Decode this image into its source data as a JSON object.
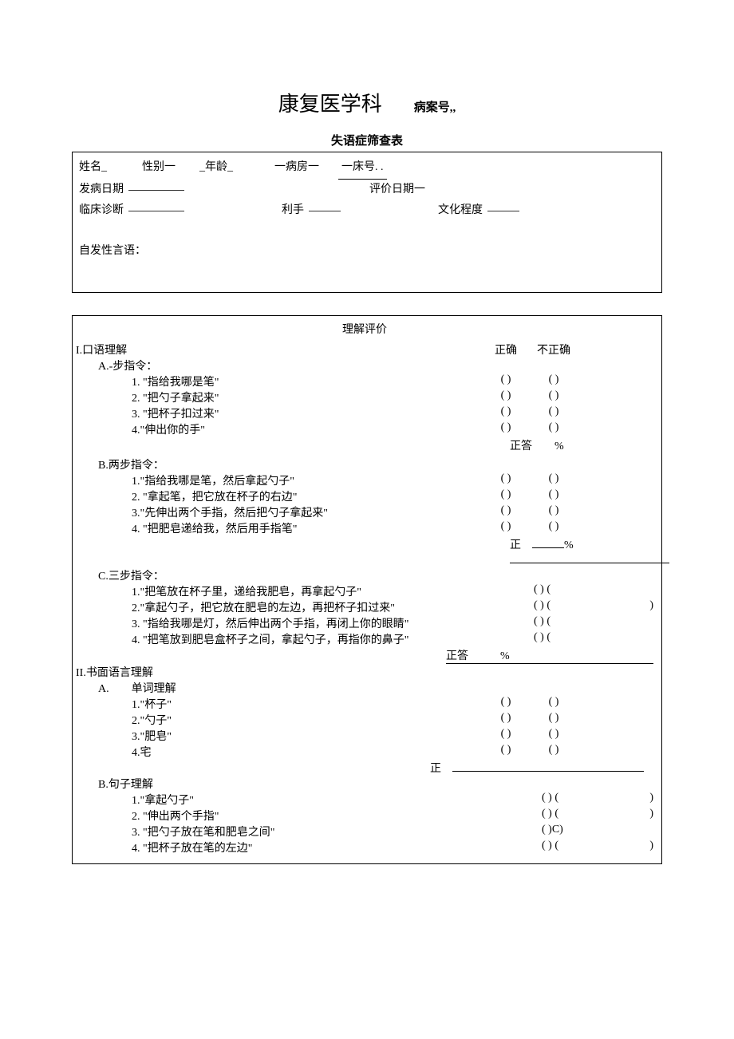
{
  "header": {
    "department": "康复医学科",
    "case_no_label": "病案号,,",
    "form_title": "失语症筛查表"
  },
  "info": {
    "name_label": "姓名_",
    "gender_label": "性别一",
    "age_label": "_年龄_",
    "ward_label": "一病房一",
    "bed_label": "一床号. .",
    "onset_label": "发病日期",
    "eval_date_label": "评价日期一",
    "diagnosis_label": "临床诊断",
    "handedness_label": "利手",
    "education_label": "文化程度",
    "spontaneous_label": "自发性言语："
  },
  "eval": {
    "title": "理解评价",
    "correct_header": "正确",
    "incorrect_header": "不正确",
    "score_label": "正答",
    "score_label_short": "正",
    "percent": "%",
    "paren_open": "( )",
    "paren_openC": "( )C)",
    "right_paren": ")",
    "s1": {
      "title": "I.口语理解",
      "a_title": "A.-步指令：",
      "a_items": [
        "1. \"指给我哪是笔\"",
        "2. \"把勺子拿起来\"",
        "3. \"把杯子扣过来\"",
        "4.\"伸出你的手\""
      ],
      "b_title": "B.两步指令：",
      "b_items": [
        "1.\"指给我哪是笔，然后拿起勺子\"",
        "2. \"拿起笔，把它放在杯子的右边\"",
        "3.\"先伸出两个手指，然后把勺子拿起来\"",
        "4. \"把肥皂递给我，然后用手指笔\""
      ],
      "c_title": "C.三步指令：",
      "c_items": [
        "1.\"把笔放在杯子里，递给我肥皂，再拿起勺子\"",
        "2.\"拿起勺子，把它放在肥皂的左边，再把杯子扣过来\"",
        "3. \"指给我哪是灯，然后伸出两个手指，再闭上你的眼睛\"",
        "4. \"把笔放到肥皂盒杯子之间，拿起勺子，再指你的鼻子\""
      ]
    },
    "s2": {
      "title": "II.书面语言理解",
      "a_title": "A.　　单词理解",
      "a_items": [
        "1.\"杯子\"",
        "2.\"勺子\"",
        "3.\"肥皂\"",
        "4.宅"
      ],
      "b_title": "B.句子理解",
      "b_items": [
        "1.\"拿起勺子\"",
        "2. \"伸出两个手指\"",
        "3. \"把勺子放在笔和肥皂之间\"",
        "4. \"把杯子放在笔的左边\""
      ]
    }
  }
}
